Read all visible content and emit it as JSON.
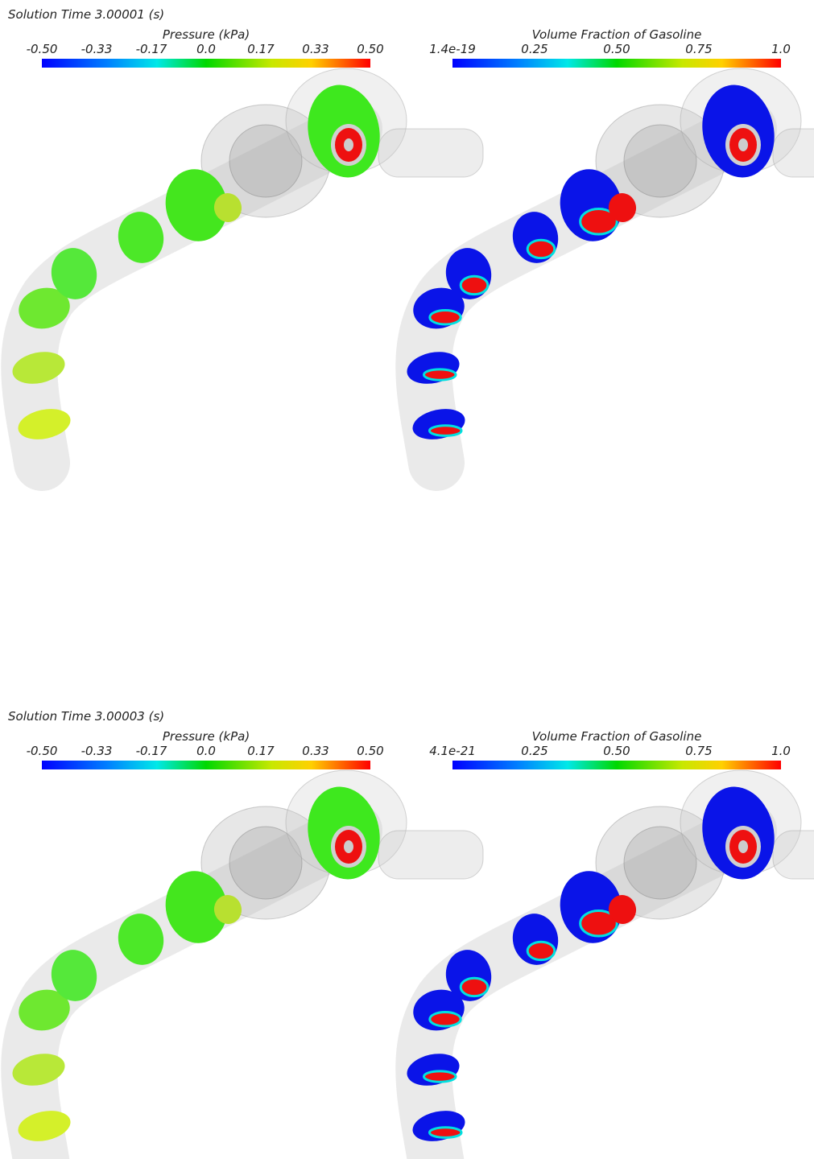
{
  "panels": [
    {
      "solution_time": "Solution Time 3.00001 (s)",
      "colorbars": [
        {
          "title": "Pressure (kPa)",
          "ticks": [
            "-0.50",
            "-0.33",
            "-0.17",
            "0.0",
            "0.17",
            "0.33",
            "0.50"
          ]
        },
        {
          "title": "Volume Fraction of Gasoline",
          "ticks": [
            "1.4e-19",
            "0.25",
            "0.50",
            "0.75",
            "1.0"
          ]
        }
      ]
    },
    {
      "solution_time": "Solution Time 3.00003 (s)",
      "colorbars": [
        {
          "title": "Pressure (kPa)",
          "ticks": [
            "-0.50",
            "-0.33",
            "-0.17",
            "0.0",
            "0.17",
            "0.33",
            "0.50"
          ]
        },
        {
          "title": "Volume Fraction of Gasoline",
          "ticks": [
            "4.1e-21",
            "0.25",
            "0.50",
            "0.75",
            "1.0"
          ]
        }
      ]
    }
  ]
}
